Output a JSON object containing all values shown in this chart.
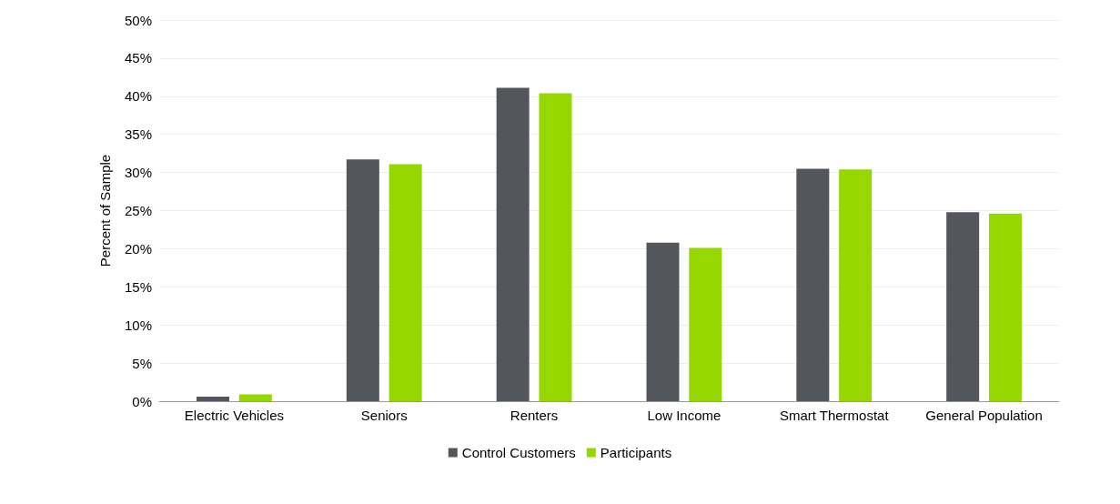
{
  "chart_data": {
    "type": "bar",
    "ylabel": "Percent of Sample",
    "categories": [
      "Electric Vehicles",
      "Seniors",
      "Renters",
      "Low Income",
      "Smart Thermostat",
      "General Population"
    ],
    "series": [
      {
        "name": "Control Customers",
        "color": "#53565a",
        "values": [
          0.6,
          31.7,
          41.1,
          20.8,
          30.5,
          24.8
        ]
      },
      {
        "name": "Participants",
        "color": "#97d700",
        "values": [
          0.9,
          31.1,
          40.4,
          20.1,
          30.4,
          24.6
        ]
      }
    ],
    "ylim": [
      0,
      50
    ],
    "yticks": [
      {
        "value": 0,
        "label": "0%"
      },
      {
        "value": 5,
        "label": "5%"
      },
      {
        "value": 10,
        "label": "10%"
      },
      {
        "value": 15,
        "label": "15%"
      },
      {
        "value": 20,
        "label": "20%"
      },
      {
        "value": 25,
        "label": "25%"
      },
      {
        "value": 30,
        "label": "30%"
      },
      {
        "value": 35,
        "label": "35%"
      },
      {
        "value": 40,
        "label": "40%"
      },
      {
        "value": 45,
        "label": "45%"
      },
      {
        "value": 50,
        "label": "50%"
      }
    ],
    "grid": true,
    "legend": "bottom"
  }
}
